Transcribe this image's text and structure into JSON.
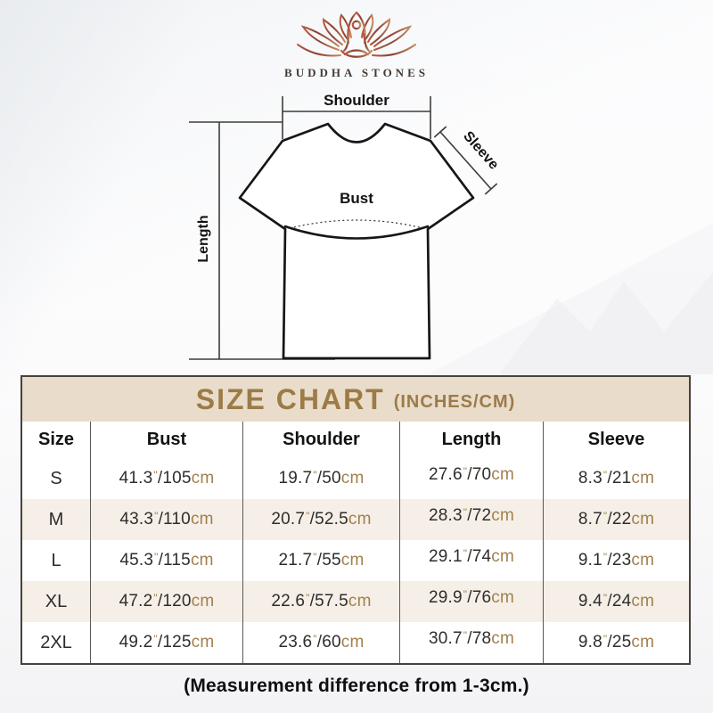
{
  "brand": {
    "name": "BUDDHA STONES",
    "logo_icon": "lotus-meditation-logo"
  },
  "diagram": {
    "labels": {
      "shoulder": "Shoulder",
      "sleeve": "Sleeve",
      "bust": "Bust",
      "length": "Length"
    }
  },
  "chart_data": {
    "type": "table",
    "title": "SIZE CHART",
    "subtitle": "(INCHES/CM)",
    "columns": [
      "Size",
      "Bust",
      "Shoulder",
      "Length",
      "Sleeve"
    ],
    "units": {
      "inch_mark": "\"",
      "cm": "cm"
    },
    "rows": [
      {
        "size": "S",
        "bust": {
          "in": "41.3",
          "cm": "105"
        },
        "shoulder": {
          "in": "19.7",
          "cm": "50"
        },
        "length": {
          "in": "27.6",
          "cm": "70"
        },
        "sleeve": {
          "in": "8.3",
          "cm": "21"
        }
      },
      {
        "size": "M",
        "bust": {
          "in": "43.3",
          "cm": "110"
        },
        "shoulder": {
          "in": "20.7",
          "cm": "52.5"
        },
        "length": {
          "in": "28.3",
          "cm": "72"
        },
        "sleeve": {
          "in": "8.7",
          "cm": "22"
        }
      },
      {
        "size": "L",
        "bust": {
          "in": "45.3",
          "cm": "115"
        },
        "shoulder": {
          "in": "21.7",
          "cm": "55"
        },
        "length": {
          "in": "29.1",
          "cm": "74"
        },
        "sleeve": {
          "in": "9.1",
          "cm": "23"
        }
      },
      {
        "size": "XL",
        "bust": {
          "in": "47.2",
          "cm": "120"
        },
        "shoulder": {
          "in": "22.6",
          "cm": "57.5"
        },
        "length": {
          "in": "29.9",
          "cm": "76"
        },
        "sleeve": {
          "in": "9.4",
          "cm": "24"
        }
      },
      {
        "size": "2XL",
        "bust": {
          "in": "49.2",
          "cm": "125"
        },
        "shoulder": {
          "in": "23.6",
          "cm": "60"
        },
        "length": {
          "in": "30.7",
          "cm": "78"
        },
        "sleeve": {
          "in": "9.8",
          "cm": "25"
        }
      }
    ]
  },
  "footer": {
    "note": "(Measurement difference from 1-3cm.)"
  },
  "colors": {
    "title_band_bg": "#e9dcca",
    "title_text": "#9c7b47",
    "unit_text": "#a1804d",
    "row_alt_bg": "#f6efe7",
    "table_border": "#46423e",
    "divider": "#5a5854",
    "logo_dark": "#8a4134",
    "logo_light": "#c68a5f"
  }
}
